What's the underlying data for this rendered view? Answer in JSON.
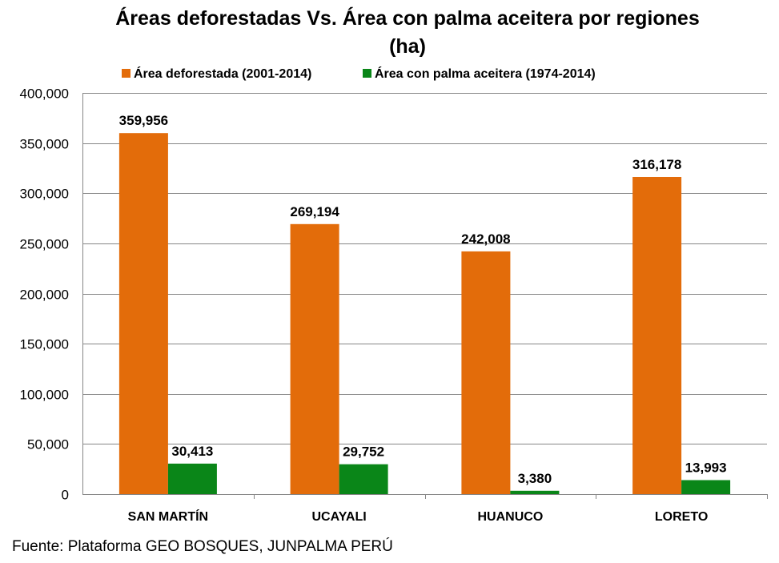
{
  "chart_data": {
    "type": "bar",
    "title_lines": [
      "Áreas deforestadas Vs. Área con palma aceitera por regiones",
      "(ha)"
    ],
    "categories": [
      "SAN MARTÍN",
      "UCAYALI",
      "HUANUCO",
      "LORETO"
    ],
    "series": [
      {
        "name": "Área deforestada (2001-2014)",
        "color": "#E36C0A",
        "values": [
          359956,
          269194,
          242008,
          316178
        ],
        "labels": [
          "359,956",
          "269,194",
          "242,008",
          "316,178"
        ]
      },
      {
        "name": "Área con palma aceitera (1974-2014)",
        "color": "#0A8618",
        "values": [
          30413,
          29752,
          3380,
          13993
        ],
        "labels": [
          "30,413",
          "29,752",
          "3,380",
          "13,993"
        ]
      }
    ],
    "ylim": [
      0,
      400000
    ],
    "yticks": [
      0,
      50000,
      100000,
      150000,
      200000,
      250000,
      300000,
      350000,
      400000
    ],
    "ytick_labels": [
      "0",
      "50,000",
      "100,000",
      "150,000",
      "200,000",
      "250,000",
      "300,000",
      "350,000",
      "400,000"
    ],
    "grid": true,
    "legend_position": "top"
  },
  "source": "Fuente: Plataforma GEO BOSQUES, JUNPALMA PERÚ"
}
